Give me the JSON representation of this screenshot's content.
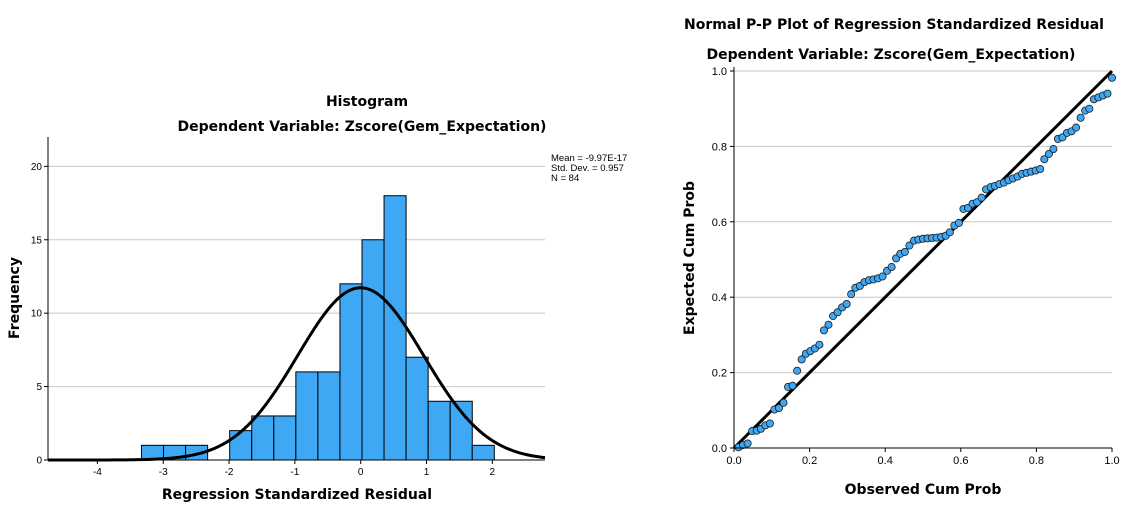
{
  "chart_data": [
    {
      "type": "bar",
      "title": "Histogram",
      "subtitle": "Dependent Variable: Zscore(Gem_Expectation)",
      "xlabel": "Regression Standardized Residual",
      "ylabel": "Frequency",
      "xlim": [
        -4.75,
        2.8
      ],
      "ylim": [
        0,
        22
      ],
      "xticks": [
        "-4",
        "-3",
        "-2",
        "-1",
        "0",
        "1",
        "2"
      ],
      "yticks": [
        "0",
        "5",
        "10",
        "15",
        "20"
      ],
      "grid": "horizontal",
      "bin_width": 0.335,
      "bins": [
        {
          "left": -3.33,
          "count": 1
        },
        {
          "left": -2.995,
          "count": 1
        },
        {
          "left": -2.66,
          "count": 1
        },
        {
          "left": -2.325,
          "count": 0
        },
        {
          "left": -1.99,
          "count": 2
        },
        {
          "left": -1.655,
          "count": 3
        },
        {
          "left": -1.32,
          "count": 3
        },
        {
          "left": -0.985,
          "count": 6
        },
        {
          "left": -0.65,
          "count": 6
        },
        {
          "left": -0.315,
          "count": 12
        },
        {
          "left": 0.02,
          "count": 15
        },
        {
          "left": 0.355,
          "count": 18
        },
        {
          "left": 0.69,
          "count": 7
        },
        {
          "left": 1.025,
          "count": 4
        },
        {
          "left": 1.36,
          "count": 4
        },
        {
          "left": 1.695,
          "count": 1
        }
      ],
      "normal_curve": {
        "mean": 0,
        "sd": 0.957,
        "n": 84,
        "bin_width": 0.335
      },
      "stats": [
        "Mean = -9.97E-17",
        "Std. Dev. = 0.957",
        "N = 84"
      ],
      "bar_color": "#3fa8f4",
      "curve_color": "#000000"
    },
    {
      "type": "scatter",
      "title": "Normal P-P Plot of Regression Standardized Residual",
      "subtitle": "Dependent Variable: Zscore(Gem_Expectation)",
      "xlabel": "Observed Cum Prob",
      "ylabel": "Expected Cum Prob",
      "xlim": [
        0,
        1
      ],
      "ylim": [
        0,
        1
      ],
      "xticks": [
        "0.0",
        "0.2",
        "0.4",
        "0.6",
        "0.8",
        "1.0"
      ],
      "yticks": [
        "0.0",
        "0.2",
        "0.4",
        "0.6",
        "0.8",
        "1.0"
      ],
      "grid": "horizontal",
      "reference_line": [
        [
          0,
          0
        ],
        [
          1,
          1
        ]
      ],
      "point_color": "#3fa8f4",
      "points": [
        [
          0.012,
          0.002
        ],
        [
          0.024,
          0.008
        ],
        [
          0.036,
          0.012
        ],
        [
          0.048,
          0.045
        ],
        [
          0.06,
          0.046
        ],
        [
          0.071,
          0.051
        ],
        [
          0.083,
          0.06
        ],
        [
          0.095,
          0.065
        ],
        [
          0.107,
          0.102
        ],
        [
          0.119,
          0.106
        ],
        [
          0.131,
          0.12
        ],
        [
          0.143,
          0.162
        ],
        [
          0.155,
          0.165
        ],
        [
          0.167,
          0.205
        ],
        [
          0.179,
          0.235
        ],
        [
          0.19,
          0.25
        ],
        [
          0.202,
          0.257
        ],
        [
          0.214,
          0.264
        ],
        [
          0.226,
          0.274
        ],
        [
          0.238,
          0.312
        ],
        [
          0.25,
          0.327
        ],
        [
          0.262,
          0.35
        ],
        [
          0.274,
          0.36
        ],
        [
          0.286,
          0.373
        ],
        [
          0.298,
          0.382
        ],
        [
          0.31,
          0.408
        ],
        [
          0.321,
          0.425
        ],
        [
          0.333,
          0.43
        ],
        [
          0.345,
          0.44
        ],
        [
          0.357,
          0.445
        ],
        [
          0.369,
          0.447
        ],
        [
          0.381,
          0.45
        ],
        [
          0.393,
          0.455
        ],
        [
          0.405,
          0.47
        ],
        [
          0.417,
          0.48
        ],
        [
          0.429,
          0.503
        ],
        [
          0.44,
          0.515
        ],
        [
          0.452,
          0.52
        ],
        [
          0.464,
          0.537
        ],
        [
          0.476,
          0.55
        ],
        [
          0.488,
          0.553
        ],
        [
          0.5,
          0.555
        ],
        [
          0.512,
          0.556
        ],
        [
          0.524,
          0.557
        ],
        [
          0.536,
          0.558
        ],
        [
          0.548,
          0.56
        ],
        [
          0.56,
          0.563
        ],
        [
          0.571,
          0.572
        ],
        [
          0.583,
          0.59
        ],
        [
          0.595,
          0.597
        ],
        [
          0.607,
          0.634
        ],
        [
          0.619,
          0.637
        ],
        [
          0.631,
          0.648
        ],
        [
          0.643,
          0.652
        ],
        [
          0.655,
          0.664
        ],
        [
          0.667,
          0.686
        ],
        [
          0.679,
          0.692
        ],
        [
          0.69,
          0.695
        ],
        [
          0.702,
          0.7
        ],
        [
          0.714,
          0.704
        ],
        [
          0.726,
          0.71
        ],
        [
          0.738,
          0.715
        ],
        [
          0.75,
          0.72
        ],
        [
          0.762,
          0.727
        ],
        [
          0.774,
          0.73
        ],
        [
          0.786,
          0.733
        ],
        [
          0.798,
          0.736
        ],
        [
          0.81,
          0.74
        ],
        [
          0.821,
          0.766
        ],
        [
          0.833,
          0.78
        ],
        [
          0.845,
          0.793
        ],
        [
          0.857,
          0.82
        ],
        [
          0.869,
          0.824
        ],
        [
          0.881,
          0.836
        ],
        [
          0.893,
          0.84
        ],
        [
          0.905,
          0.85
        ],
        [
          0.917,
          0.876
        ],
        [
          0.929,
          0.895
        ],
        [
          0.94,
          0.9
        ],
        [
          0.952,
          0.925
        ],
        [
          0.964,
          0.93
        ],
        [
          0.976,
          0.935
        ],
        [
          0.988,
          0.94
        ],
        [
          1.0,
          0.982
        ]
      ]
    }
  ]
}
